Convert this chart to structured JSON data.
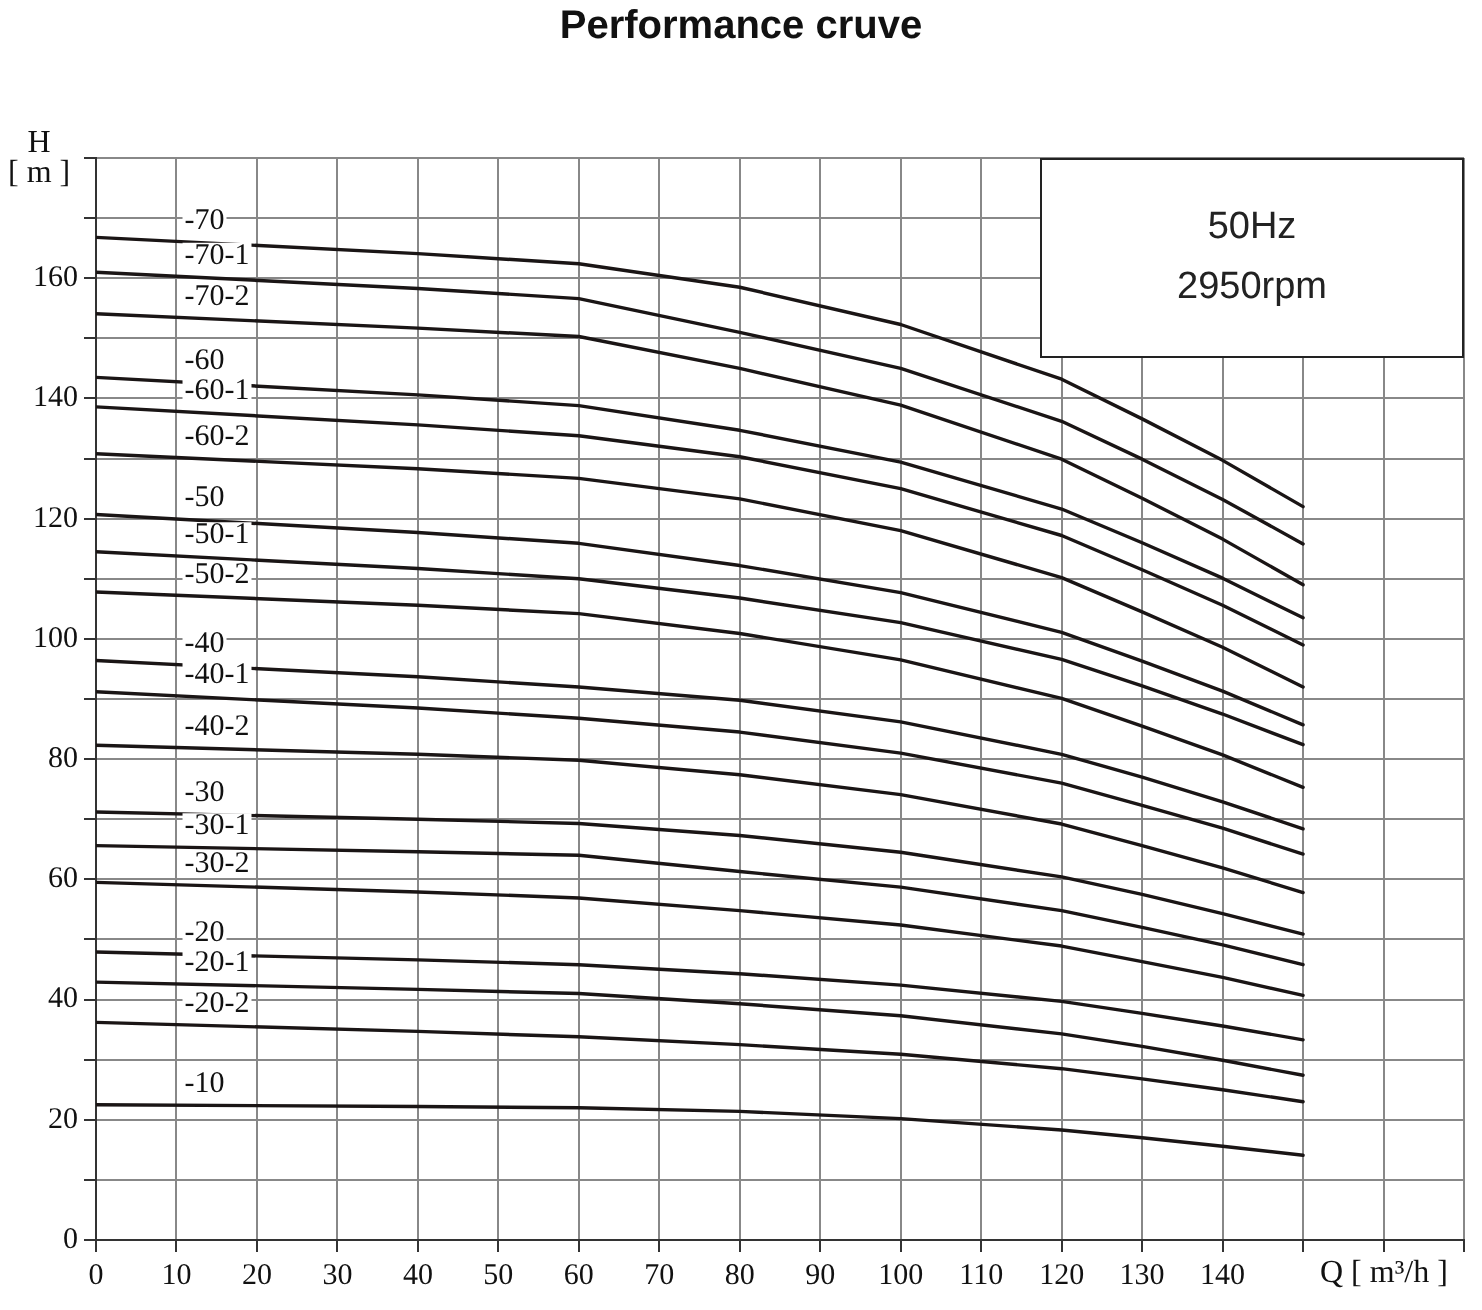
{
  "chart_data": {
    "type": "line",
    "title": "Performance cruve",
    "xlabel": "Q [ m³/h ]",
    "ylabel": "H\n[ m ]",
    "annotations": [
      "50Hz",
      "2950rpm"
    ],
    "x": [
      0,
      40,
      60,
      80,
      100,
      120,
      130,
      140,
      150
    ],
    "xlim": [
      0,
      170
    ],
    "xticks": [
      0,
      10,
      20,
      30,
      40,
      50,
      60,
      70,
      80,
      90,
      100,
      110,
      120,
      130,
      140,
      {
        "value": 150,
        "label": null
      },
      {
        "value": 160,
        "label": null
      },
      {
        "value": 170,
        "label": null
      }
    ],
    "ylim": [
      0,
      180
    ],
    "yticks": [
      0,
      {
        "value": 10,
        "label": null
      },
      20,
      {
        "value": 30,
        "label": null
      },
      40,
      {
        "value": 50,
        "label": null
      },
      60,
      {
        "value": 70,
        "label": null
      },
      80,
      {
        "value": 90,
        "label": null
      },
      100,
      {
        "value": 110,
        "label": null
      },
      120,
      {
        "value": 130,
        "label": null
      },
      140,
      {
        "value": 150,
        "label": null
      },
      160,
      {
        "value": 170,
        "label": null
      },
      {
        "value": 180,
        "label": null
      }
    ],
    "grid": true,
    "legend": false,
    "marker": "none",
    "line_style": "solid",
    "series": [
      {
        "name": "-70",
        "color": "#1a1515",
        "values": [
          166.8,
          164.1,
          162.4,
          158.5,
          152.3,
          143.2,
          136.6,
          129.7,
          122
        ]
      },
      {
        "name": "-70-1",
        "color": "#1a1515",
        "values": [
          161,
          158.3,
          156.6,
          151,
          145.0,
          136.2,
          129.9,
          123.2,
          115.8
        ]
      },
      {
        "name": "-70-2",
        "color": "#1a1515",
        "values": [
          154.1,
          151.7,
          150.3,
          145,
          138.9,
          129.9,
          123.4,
          116.6,
          109
        ]
      },
      {
        "name": "-60",
        "color": "#1a1515",
        "values": [
          143.5,
          140.6,
          138.8,
          134.7,
          129.4,
          121.6,
          116.0,
          110.1,
          103.5
        ]
      },
      {
        "name": "-60-1",
        "color": "#1a1515",
        "values": [
          138.6,
          135.6,
          133.8,
          130.3,
          125.0,
          117.2,
          111.5,
          105.6,
          99
        ]
      },
      {
        "name": "-60-2",
        "color": "#1a1515",
        "values": [
          130.8,
          128.3,
          126.7,
          123.3,
          118.0,
          110.2,
          104.5,
          98.6,
          92
        ]
      },
      {
        "name": "-50",
        "color": "#1a1515",
        "values": [
          120.7,
          117.7,
          115.9,
          112.2,
          107.7,
          101.1,
          96.3,
          91.3,
          85.7
        ]
      },
      {
        "name": "-50-1",
        "color": "#1a1515",
        "values": [
          114.5,
          111.7,
          110,
          106.8,
          102.7,
          96.6,
          92.2,
          87.5,
          82.4
        ]
      },
      {
        "name": "-50-2",
        "color": "#1a1515",
        "values": [
          107.8,
          105.6,
          104.2,
          100.9,
          96.5,
          90.1,
          85.5,
          80.7,
          75.3
        ]
      },
      {
        "name": "-40",
        "color": "#1a1515",
        "values": [
          96.4,
          93.7,
          92,
          89.8,
          86.2,
          80.8,
          77.0,
          72.9,
          68.4
        ]
      },
      {
        "name": "-40-1",
        "color": "#1a1515",
        "values": [
          91.2,
          88.5,
          86.8,
          84.5,
          81.0,
          76.0,
          72.3,
          68.5,
          64.2
        ]
      },
      {
        "name": "-40-2",
        "color": "#1a1515",
        "values": [
          82.3,
          80.8,
          79.8,
          77.4,
          74.1,
          69.2,
          65.6,
          61.9,
          57.8
        ]
      },
      {
        "name": "-30",
        "color": "#1a1515",
        "values": [
          71.2,
          70.0,
          69.3,
          67.3,
          64.5,
          60.4,
          57.5,
          54.3,
          50.9
        ]
      },
      {
        "name": "-30-1",
        "color": "#1a1515",
        "values": [
          65.6,
          64.6,
          64,
          61.3,
          58.7,
          54.8,
          52.0,
          49.1,
          45.8
        ]
      },
      {
        "name": "-30-2",
        "color": "#1a1515",
        "values": [
          59.5,
          57.9,
          56.9,
          54.8,
          52.4,
          48.9,
          46.3,
          43.7,
          40.7
        ]
      },
      {
        "name": "-20",
        "color": "#1a1515",
        "values": [
          47.9,
          46.6,
          45.8,
          44.3,
          42.4,
          39.7,
          37.7,
          35.6,
          33.3
        ]
      },
      {
        "name": "-20-1",
        "color": "#1a1515",
        "values": [
          42.9,
          41.7,
          41,
          39.3,
          37.3,
          34.3,
          32.2,
          29.9,
          27.4
        ]
      },
      {
        "name": "-20-2",
        "color": "#1a1515",
        "values": [
          36.2,
          34.7,
          33.8,
          32.5,
          30.9,
          28.5,
          26.8,
          25.0,
          23
        ]
      },
      {
        "name": "-10",
        "color": "#1a1515",
        "values": [
          22.5,
          22.2,
          22,
          21.4,
          20.2,
          18.3,
          17.0,
          15.6,
          14.1
        ]
      }
    ]
  }
}
